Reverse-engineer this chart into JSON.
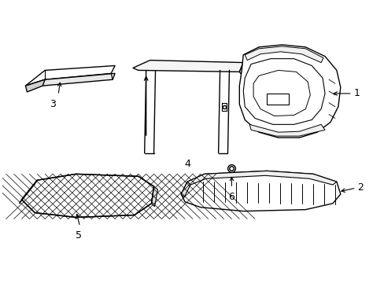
{
  "bg_color": "#ffffff",
  "line_color": "#000000",
  "line_width": 1.0,
  "fig_width": 4.89,
  "fig_height": 3.6,
  "dpi": 100
}
